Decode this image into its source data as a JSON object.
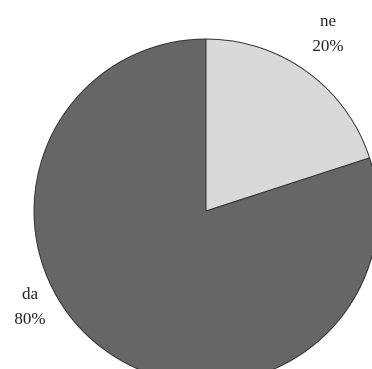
{
  "chart_data": {
    "type": "pie",
    "categories": [
      "ne",
      "da"
    ],
    "values": [
      20,
      80
    ],
    "value_labels": [
      "20%",
      "80%"
    ],
    "colors": [
      "#d9d9d9",
      "#666666"
    ]
  }
}
